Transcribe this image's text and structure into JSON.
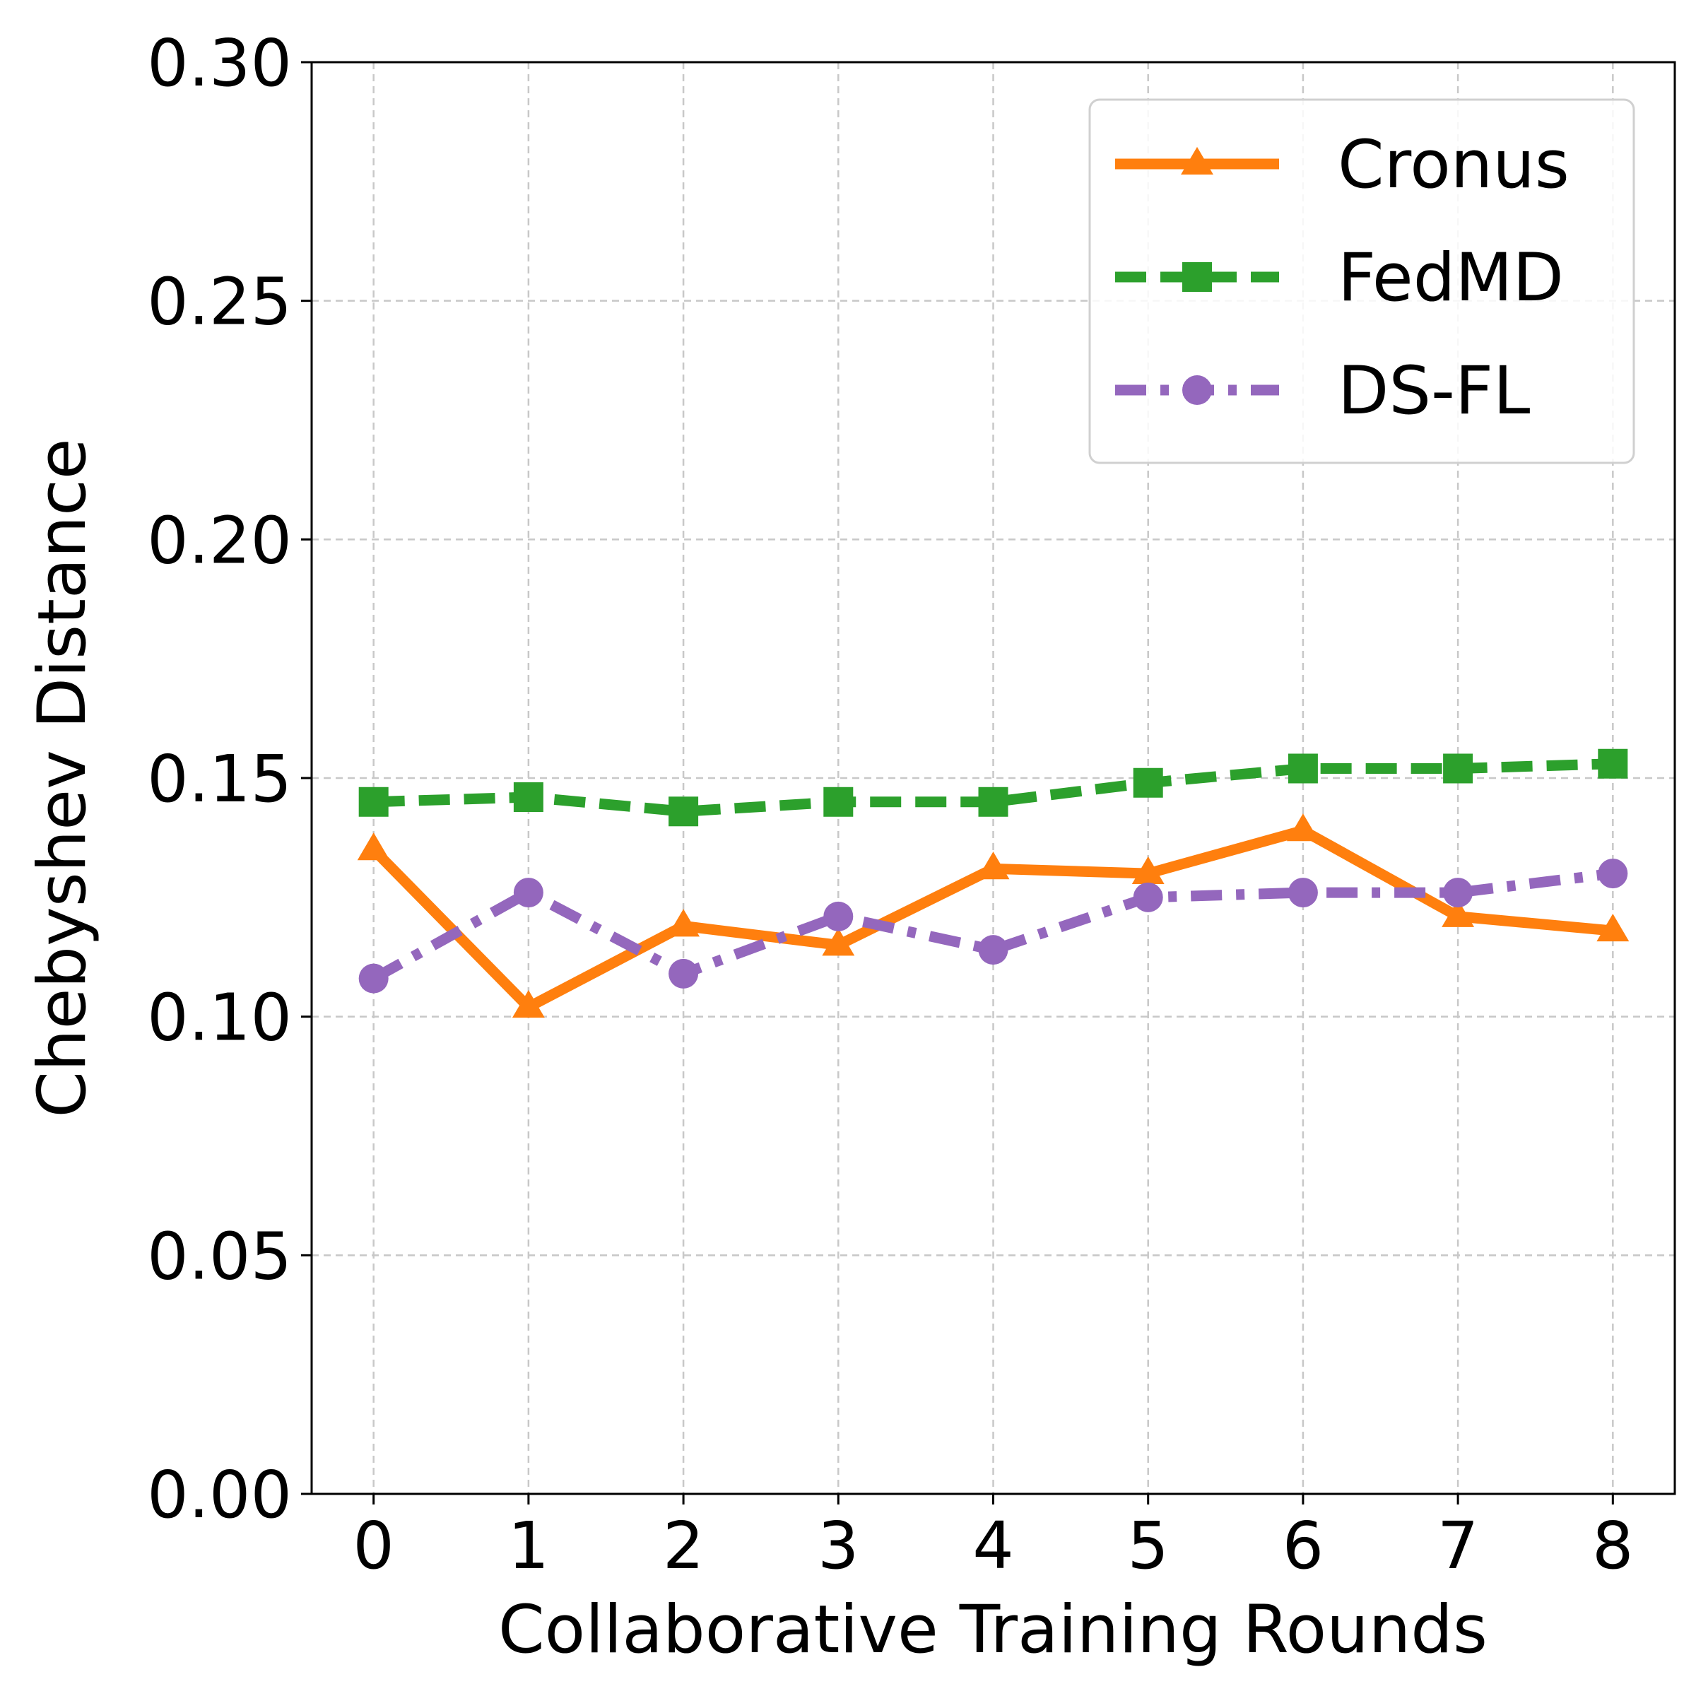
{
  "chart_data": {
    "type": "line",
    "xlabel": "Collaborative Training Rounds",
    "ylabel": "Chebyshev Distance",
    "x": [
      0,
      1,
      2,
      3,
      4,
      5,
      6,
      7,
      8
    ],
    "x_ticks": [
      "0",
      "1",
      "2",
      "3",
      "4",
      "5",
      "6",
      "7",
      "8"
    ],
    "y_ticks": [
      "0.00",
      "0.05",
      "0.10",
      "0.15",
      "0.20",
      "0.25",
      "0.30"
    ],
    "xlim": [
      -0.4,
      8.4
    ],
    "ylim": [
      0,
      0.3
    ],
    "grid": true,
    "legend_position": "top-right",
    "series": [
      {
        "name": "Cronus",
        "color": "#ff7f0e",
        "marker": "triangle",
        "line_style": "solid",
        "values": [
          0.135,
          0.102,
          0.119,
          0.115,
          0.131,
          0.13,
          0.139,
          0.121,
          0.118
        ]
      },
      {
        "name": "FedMD",
        "color": "#2ca02c",
        "marker": "square",
        "line_style": "dashed",
        "values": [
          0.145,
          0.146,
          0.143,
          0.145,
          0.145,
          0.149,
          0.152,
          0.152,
          0.153
        ]
      },
      {
        "name": "DS-FL",
        "color": "#9467bd",
        "marker": "circle",
        "line_style": "dashdot",
        "values": [
          0.108,
          0.126,
          0.109,
          0.121,
          0.114,
          0.125,
          0.126,
          0.126,
          0.13
        ]
      }
    ]
  }
}
